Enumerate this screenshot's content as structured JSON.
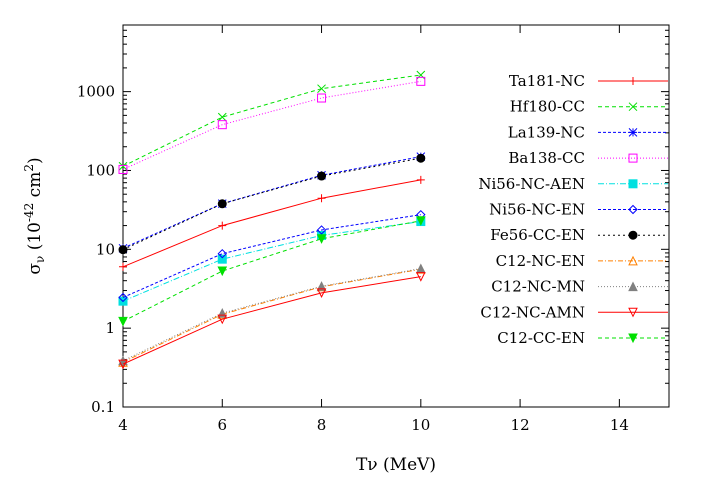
{
  "chart_data": {
    "type": "line",
    "xlabel": "Tν (MeV)",
    "xlabel_main": "T",
    "xlabel_sub": "ν",
    "xlabel_unit": " (MeV)",
    "ylabel_main": "σ",
    "ylabel_sub": "ν",
    "ylabel_unit_pre": " (10",
    "ylabel_exp": "-42",
    "ylabel_unit_mid": " cm",
    "ylabel_exp2": "2",
    "ylabel_unit_post": ")",
    "xlim": [
      4,
      15
    ],
    "ylim": [
      0.1,
      7000
    ],
    "yscale": "log",
    "grid": false,
    "legend_placement": "right",
    "xticks": [
      "4",
      "6",
      "8",
      "10",
      "12",
      "14"
    ],
    "yticks": [
      "0.1",
      "1",
      "10",
      "100",
      "1000"
    ],
    "x": [
      4,
      6,
      8,
      10
    ],
    "series": [
      {
        "name": "Ta181-NC",
        "color": "#ff0000",
        "marker": "plus",
        "dash": "",
        "values": [
          6.0,
          20,
          44.5,
          76
        ]
      },
      {
        "name": "Hf180-CC",
        "color": "#00e000",
        "marker": "cross",
        "dash": "4,3",
        "values": [
          113,
          475,
          1090,
          1625
        ]
      },
      {
        "name": "La139-NC",
        "color": "#0000ff",
        "marker": "star",
        "dash": "3,2",
        "values": [
          10.3,
          38,
          87,
          150
        ]
      },
      {
        "name": "Ba138-CC",
        "color": "#ff00ff",
        "marker": "square-open",
        "dash": "1,2",
        "values": [
          103,
          381,
          830,
          1350
        ]
      },
      {
        "name": "Ni56-NC-AEN",
        "color": "#00e0e0",
        "marker": "square-filled",
        "dash": "6,2,1,2",
        "values": [
          2.2,
          7.5,
          15,
          22.5
        ]
      },
      {
        "name": "Ni56-NC-EN",
        "color": "#0000ff",
        "marker": "diamond-open",
        "dash": "3,2",
        "values": [
          2.45,
          8.8,
          17.6,
          27.5
        ]
      },
      {
        "name": "Fe56-CC-EN",
        "color": "#000000",
        "marker": "circle-filled",
        "dash": "2,3",
        "values": [
          9.9,
          37.8,
          85,
          143
        ]
      },
      {
        "name": "C12-NC-EN",
        "color": "#ff8000",
        "marker": "triangle-up-open",
        "dash": "5,2,1,2",
        "values": [
          0.37,
          1.5,
          3.35,
          5.6
        ]
      },
      {
        "name": "C12-NC-MN",
        "color": "#808080",
        "marker": "triangle-up-filled",
        "dash": "1,2",
        "values": [
          0.386,
          1.55,
          3.4,
          5.7
        ]
      },
      {
        "name": "C12-NC-AMN",
        "color": "#ff0000",
        "marker": "triangle-down-open",
        "dash": "",
        "values": [
          0.35,
          1.3,
          2.8,
          4.5
        ]
      },
      {
        "name": "C12-CC-EN",
        "color": "#00e000",
        "marker": "triangle-down-filled",
        "dash": "4,3",
        "values": [
          1.22,
          5.3,
          13.6,
          23
        ]
      }
    ]
  }
}
